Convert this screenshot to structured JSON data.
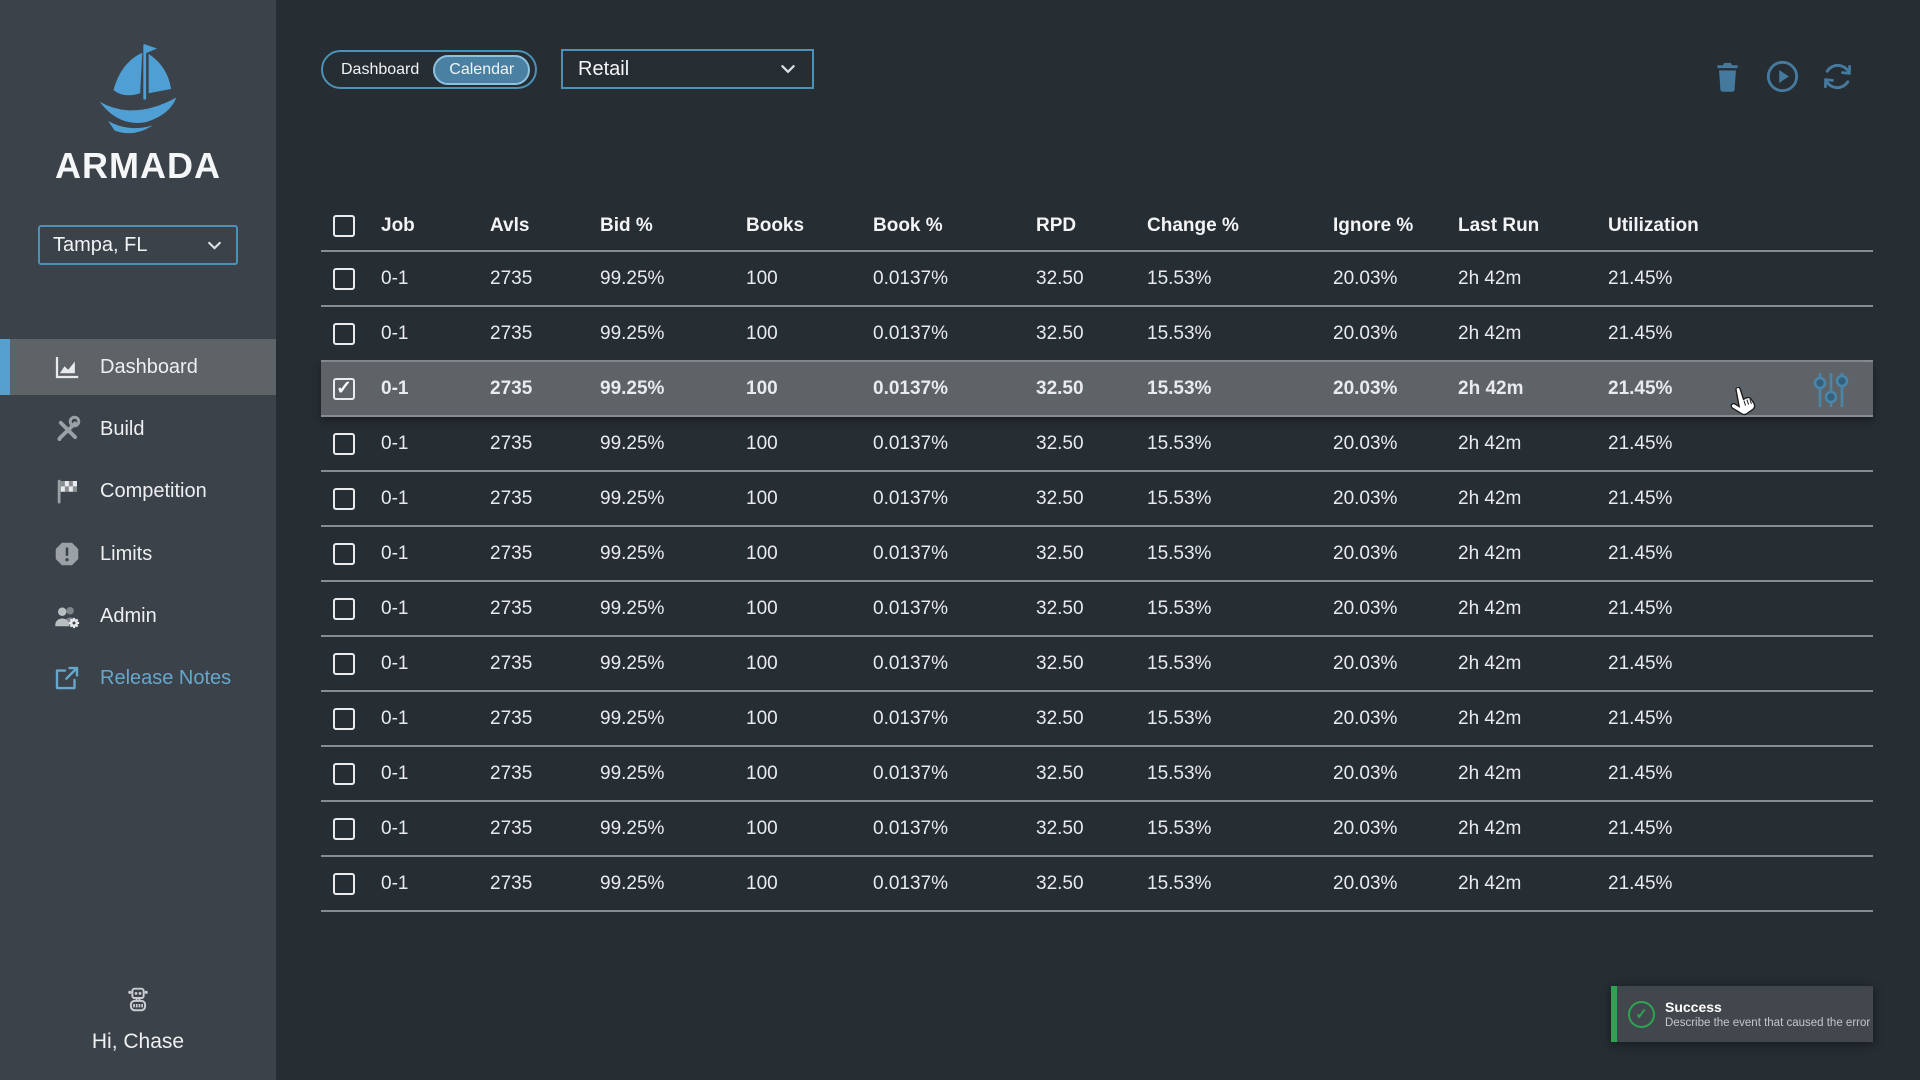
{
  "sidebar": {
    "brand": "ARMADA",
    "location_select": {
      "value": "Tampa, FL"
    },
    "nav": [
      {
        "label": "Dashboard",
        "icon": "area-chart-icon",
        "active": true
      },
      {
        "label": "Build",
        "icon": "tools-icon",
        "active": false
      },
      {
        "label": "Competition",
        "icon": "checkered-flag-icon",
        "active": false
      },
      {
        "label": "Limits",
        "icon": "limit-octagon-icon",
        "active": false
      },
      {
        "label": "Admin",
        "icon": "users-gear-icon",
        "active": false
      },
      {
        "label": "Release Notes",
        "icon": "external-link-icon",
        "active": false
      }
    ],
    "greeting": "Hi, Chase"
  },
  "topbar": {
    "view_toggle": {
      "options": [
        "Dashboard",
        "Calendar"
      ],
      "selected": "Calendar"
    },
    "category_select": {
      "value": "Retail"
    },
    "actions": [
      "delete",
      "run",
      "refresh"
    ]
  },
  "table": {
    "columns": [
      "Job",
      "Avls",
      "Bid %",
      "Books",
      "Book %",
      "RPD",
      "Change %",
      "Ignore %",
      "Last Run",
      "Utilization"
    ],
    "fields": [
      "job",
      "avls",
      "bid_pct",
      "books",
      "book_pct",
      "rpd",
      "change_pct",
      "ignore_pct",
      "last_run",
      "utilization"
    ],
    "rows": [
      {
        "selected": false,
        "job": "0-1",
        "avls": "2735",
        "bid_pct": "99.25%",
        "books": "100",
        "book_pct": "0.0137%",
        "rpd": "32.50",
        "change_pct": "15.53%",
        "ignore_pct": "20.03%",
        "last_run": "2h 42m",
        "utilization": "21.45%"
      },
      {
        "selected": false,
        "job": "0-1",
        "avls": "2735",
        "bid_pct": "99.25%",
        "books": "100",
        "book_pct": "0.0137%",
        "rpd": "32.50",
        "change_pct": "15.53%",
        "ignore_pct": "20.03%",
        "last_run": "2h 42m",
        "utilization": "21.45%"
      },
      {
        "selected": true,
        "job": "0-1",
        "avls": "2735",
        "bid_pct": "99.25%",
        "books": "100",
        "book_pct": "0.0137%",
        "rpd": "32.50",
        "change_pct": "15.53%",
        "ignore_pct": "20.03%",
        "last_run": "2h 42m",
        "utilization": "21.45%"
      },
      {
        "selected": false,
        "job": "0-1",
        "avls": "2735",
        "bid_pct": "99.25%",
        "books": "100",
        "book_pct": "0.0137%",
        "rpd": "32.50",
        "change_pct": "15.53%",
        "ignore_pct": "20.03%",
        "last_run": "2h 42m",
        "utilization": "21.45%"
      },
      {
        "selected": false,
        "job": "0-1",
        "avls": "2735",
        "bid_pct": "99.25%",
        "books": "100",
        "book_pct": "0.0137%",
        "rpd": "32.50",
        "change_pct": "15.53%",
        "ignore_pct": "20.03%",
        "last_run": "2h 42m",
        "utilization": "21.45%"
      },
      {
        "selected": false,
        "job": "0-1",
        "avls": "2735",
        "bid_pct": "99.25%",
        "books": "100",
        "book_pct": "0.0137%",
        "rpd": "32.50",
        "change_pct": "15.53%",
        "ignore_pct": "20.03%",
        "last_run": "2h 42m",
        "utilization": "21.45%"
      },
      {
        "selected": false,
        "job": "0-1",
        "avls": "2735",
        "bid_pct": "99.25%",
        "books": "100",
        "book_pct": "0.0137%",
        "rpd": "32.50",
        "change_pct": "15.53%",
        "ignore_pct": "20.03%",
        "last_run": "2h 42m",
        "utilization": "21.45%"
      },
      {
        "selected": false,
        "job": "0-1",
        "avls": "2735",
        "bid_pct": "99.25%",
        "books": "100",
        "book_pct": "0.0137%",
        "rpd": "32.50",
        "change_pct": "15.53%",
        "ignore_pct": "20.03%",
        "last_run": "2h 42m",
        "utilization": "21.45%"
      },
      {
        "selected": false,
        "job": "0-1",
        "avls": "2735",
        "bid_pct": "99.25%",
        "books": "100",
        "book_pct": "0.0137%",
        "rpd": "32.50",
        "change_pct": "15.53%",
        "ignore_pct": "20.03%",
        "last_run": "2h 42m",
        "utilization": "21.45%"
      },
      {
        "selected": false,
        "job": "0-1",
        "avls": "2735",
        "bid_pct": "99.25%",
        "books": "100",
        "book_pct": "0.0137%",
        "rpd": "32.50",
        "change_pct": "15.53%",
        "ignore_pct": "20.03%",
        "last_run": "2h 42m",
        "utilization": "21.45%"
      },
      {
        "selected": false,
        "job": "0-1",
        "avls": "2735",
        "bid_pct": "99.25%",
        "books": "100",
        "book_pct": "0.0137%",
        "rpd": "32.50",
        "change_pct": "15.53%",
        "ignore_pct": "20.03%",
        "last_run": "2h 42m",
        "utilization": "21.45%"
      },
      {
        "selected": false,
        "job": "0-1",
        "avls": "2735",
        "bid_pct": "99.25%",
        "books": "100",
        "book_pct": "0.0137%",
        "rpd": "32.50",
        "change_pct": "15.53%",
        "ignore_pct": "20.03%",
        "last_run": "2h 42m",
        "utilization": "21.45%"
      }
    ]
  },
  "toast": {
    "title": "Success",
    "message": "Describe the event that caused the error"
  },
  "icons": {
    "check": "✓"
  },
  "colors": {
    "accent_blue": "#4a92b8",
    "steel_icon_blue": "#457a9e",
    "link_blue": "#66a7cd",
    "sidebar_bg": "#3b4249",
    "main_bg": "#262d33",
    "selected_row_bg": "#5d6367",
    "divider": "#868c91",
    "toast_green": "#2ea352",
    "logo_blue": "#4f9fd4"
  }
}
